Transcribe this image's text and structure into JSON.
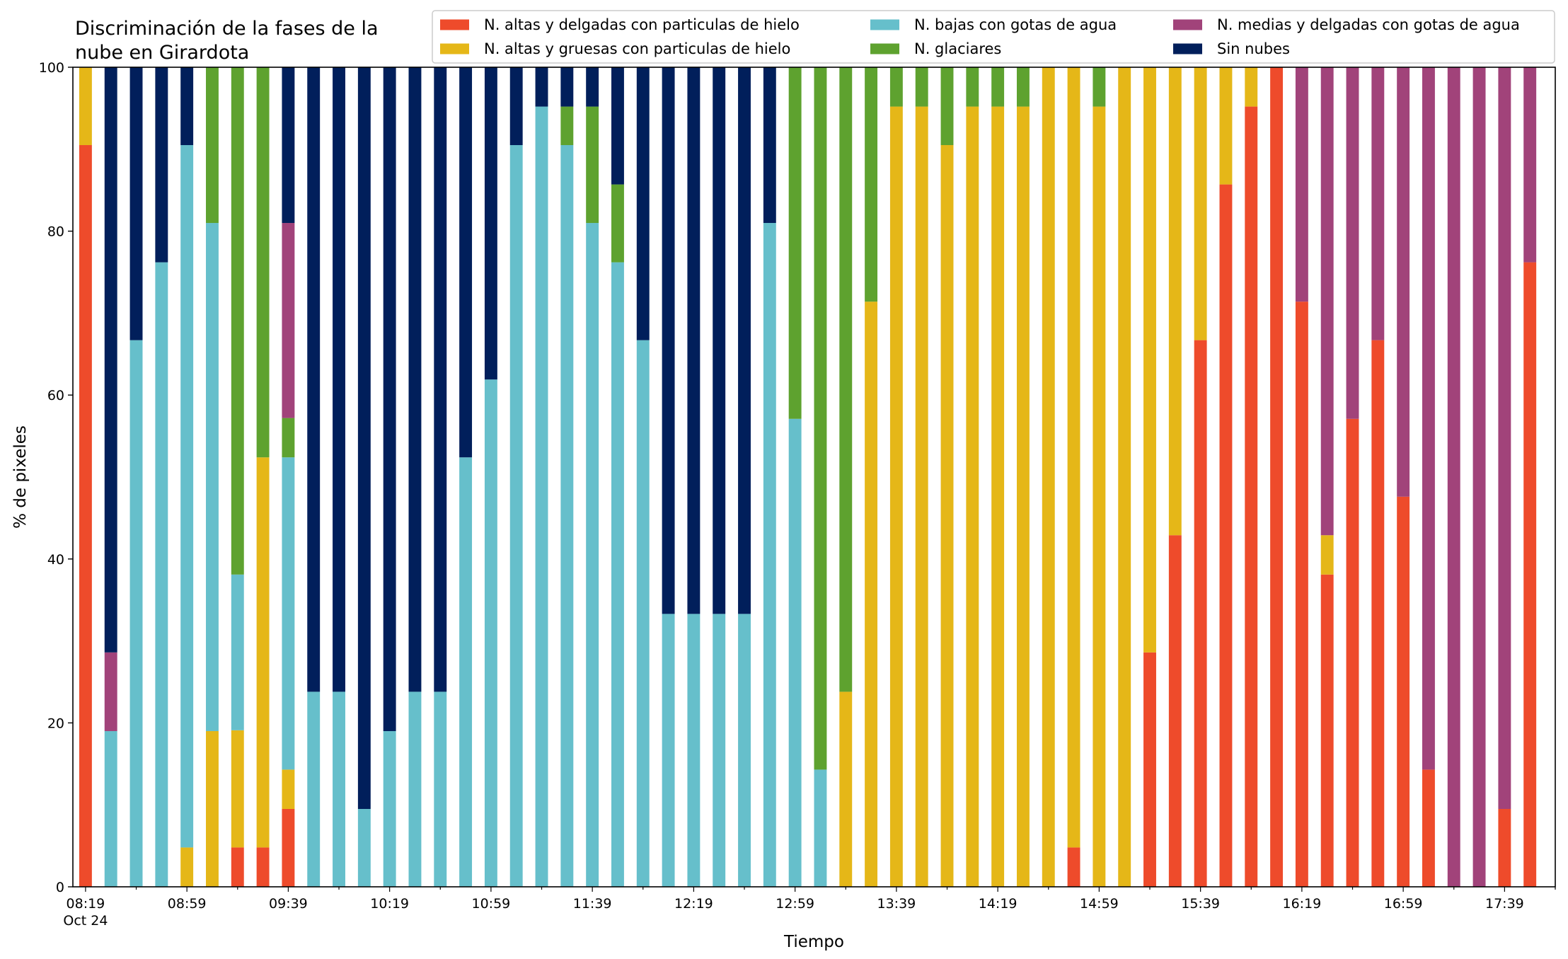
{
  "chart_data": {
    "type": "bar",
    "stacked": true,
    "title_lines": [
      "Discriminación de la fases de la",
      "nube en Girardota"
    ],
    "xlabel": "Tiempo",
    "ylabel": "% de pixeles",
    "ylim": [
      0,
      100
    ],
    "yticks": [
      0,
      20,
      40,
      60,
      80,
      100
    ],
    "xtick_labels": [
      "08:19",
      "08:59",
      "09:39",
      "10:19",
      "10:59",
      "11:39",
      "12:19",
      "12:59",
      "13:39",
      "14:19",
      "14:59",
      "15:39",
      "16:19",
      "16:59",
      "17:39"
    ],
    "xtick_sublabel": "Oct 24",
    "legend_position": "top-right",
    "colors": {
      "altas_delgadas": "#ee4b2b",
      "altas_gruesas": "#e5b718",
      "bajas": "#66bfcb",
      "glaciares": "#5ea22f",
      "medias_delgadas": "#a1437a",
      "sin_nubes": "#011f5b"
    },
    "legend": [
      {
        "key": "altas_delgadas",
        "label": "N. altas y delgadas con particulas de hielo"
      },
      {
        "key": "bajas",
        "label": "N. bajas con gotas de agua"
      },
      {
        "key": "medias_delgadas",
        "label": "N. medias y delgadas con gotas de agua"
      },
      {
        "key": "altas_gruesas",
        "label": "N. altas y gruesas con particulas de hielo"
      },
      {
        "key": "glaciares",
        "label": "N. glaciares"
      },
      {
        "key": "sin_nubes",
        "label": "Sin nubes"
      }
    ],
    "stack_order": [
      "altas_delgadas",
      "altas_gruesas",
      "bajas",
      "glaciares",
      "medias_delgadas",
      "sin_nubes"
    ],
    "bars": [
      {
        "time": "08:19",
        "altas_delgadas": 90.5,
        "altas_gruesas": 9.5,
        "bajas": 0,
        "glaciares": 0,
        "medias_delgadas": 0,
        "sin_nubes": 0
      },
      {
        "time": "08:29",
        "altas_delgadas": 0,
        "altas_gruesas": 0,
        "bajas": 19.0,
        "glaciares": 0,
        "medias_delgadas": 9.6,
        "sin_nubes": 71.4
      },
      {
        "time": "08:39",
        "altas_delgadas": 0,
        "altas_gruesas": 0,
        "bajas": 66.7,
        "glaciares": 0,
        "medias_delgadas": 0,
        "sin_nubes": 33.3
      },
      {
        "time": "08:49",
        "altas_delgadas": 0,
        "altas_gruesas": 0,
        "bajas": 76.2,
        "glaciares": 0,
        "medias_delgadas": 0,
        "sin_nubes": 23.8
      },
      {
        "time": "08:59",
        "altas_delgadas": 0,
        "altas_gruesas": 4.8,
        "bajas": 85.7,
        "glaciares": 0,
        "medias_delgadas": 0,
        "sin_nubes": 9.5
      },
      {
        "time": "09:09",
        "altas_delgadas": 0,
        "altas_gruesas": 19.0,
        "bajas": 62.0,
        "glaciares": 19.0,
        "medias_delgadas": 0,
        "sin_nubes": 0
      },
      {
        "time": "09:19",
        "altas_delgadas": 4.8,
        "altas_gruesas": 14.3,
        "bajas": 19.0,
        "glaciares": 61.9,
        "medias_delgadas": 0,
        "sin_nubes": 0
      },
      {
        "time": "09:29",
        "altas_delgadas": 4.8,
        "altas_gruesas": 47.6,
        "bajas": 0,
        "glaciares": 47.6,
        "medias_delgadas": 0,
        "sin_nubes": 0
      },
      {
        "time": "09:39",
        "altas_delgadas": 9.5,
        "altas_gruesas": 4.8,
        "bajas": 38.1,
        "glaciares": 4.8,
        "medias_delgadas": 23.8,
        "sin_nubes": 19.0
      },
      {
        "time": "09:49",
        "altas_delgadas": 0,
        "altas_gruesas": 0,
        "bajas": 23.8,
        "glaciares": 0,
        "medias_delgadas": 0,
        "sin_nubes": 76.2
      },
      {
        "time": "09:59",
        "altas_delgadas": 0,
        "altas_gruesas": 0,
        "bajas": 23.8,
        "glaciares": 0,
        "medias_delgadas": 0,
        "sin_nubes": 76.2
      },
      {
        "time": "10:09",
        "altas_delgadas": 0,
        "altas_gruesas": 0,
        "bajas": 9.5,
        "glaciares": 0,
        "medias_delgadas": 0,
        "sin_nubes": 90.5
      },
      {
        "time": "10:19",
        "altas_delgadas": 0,
        "altas_gruesas": 0,
        "bajas": 19.0,
        "glaciares": 0,
        "medias_delgadas": 0,
        "sin_nubes": 81.0
      },
      {
        "time": "10:29",
        "altas_delgadas": 0,
        "altas_gruesas": 0,
        "bajas": 23.8,
        "glaciares": 0,
        "medias_delgadas": 0,
        "sin_nubes": 76.2
      },
      {
        "time": "10:39",
        "altas_delgadas": 0,
        "altas_gruesas": 0,
        "bajas": 23.8,
        "glaciares": 0,
        "medias_delgadas": 0,
        "sin_nubes": 76.2
      },
      {
        "time": "10:49",
        "altas_delgadas": 0,
        "altas_gruesas": 0,
        "bajas": 52.4,
        "glaciares": 0,
        "medias_delgadas": 0,
        "sin_nubes": 47.6
      },
      {
        "time": "10:59",
        "altas_delgadas": 0,
        "altas_gruesas": 0,
        "bajas": 61.9,
        "glaciares": 0,
        "medias_delgadas": 0,
        "sin_nubes": 38.1
      },
      {
        "time": "11:09",
        "altas_delgadas": 0,
        "altas_gruesas": 0,
        "bajas": 90.5,
        "glaciares": 0,
        "medias_delgadas": 0,
        "sin_nubes": 9.5
      },
      {
        "time": "11:19",
        "altas_delgadas": 0,
        "altas_gruesas": 0,
        "bajas": 95.2,
        "glaciares": 0,
        "medias_delgadas": 0,
        "sin_nubes": 4.8
      },
      {
        "time": "11:29",
        "altas_delgadas": 0,
        "altas_gruesas": 0,
        "bajas": 90.5,
        "glaciares": 4.7,
        "medias_delgadas": 0,
        "sin_nubes": 4.8
      },
      {
        "time": "11:39",
        "altas_delgadas": 0,
        "altas_gruesas": 0,
        "bajas": 81.0,
        "glaciares": 14.2,
        "medias_delgadas": 0,
        "sin_nubes": 4.8
      },
      {
        "time": "11:49",
        "altas_delgadas": 0,
        "altas_gruesas": 0,
        "bajas": 76.2,
        "glaciares": 9.5,
        "medias_delgadas": 0,
        "sin_nubes": 14.3
      },
      {
        "time": "11:59",
        "altas_delgadas": 0,
        "altas_gruesas": 0,
        "bajas": 66.7,
        "glaciares": 0,
        "medias_delgadas": 0,
        "sin_nubes": 33.3
      },
      {
        "time": "12:09",
        "altas_delgadas": 0,
        "altas_gruesas": 0,
        "bajas": 33.3,
        "glaciares": 0,
        "medias_delgadas": 0,
        "sin_nubes": 66.7
      },
      {
        "time": "12:19",
        "altas_delgadas": 0,
        "altas_gruesas": 0,
        "bajas": 33.3,
        "glaciares": 0,
        "medias_delgadas": 0,
        "sin_nubes": 66.7
      },
      {
        "time": "12:29",
        "altas_delgadas": 0,
        "altas_gruesas": 0,
        "bajas": 33.3,
        "glaciares": 0,
        "medias_delgadas": 0,
        "sin_nubes": 66.7
      },
      {
        "time": "12:39",
        "altas_delgadas": 0,
        "altas_gruesas": 0,
        "bajas": 33.3,
        "glaciares": 0,
        "medias_delgadas": 0,
        "sin_nubes": 66.7
      },
      {
        "time": "12:49",
        "altas_delgadas": 0,
        "altas_gruesas": 0,
        "bajas": 81.0,
        "glaciares": 0,
        "medias_delgadas": 0,
        "sin_nubes": 19.0
      },
      {
        "time": "12:59",
        "altas_delgadas": 0,
        "altas_gruesas": 0,
        "bajas": 57.1,
        "glaciares": 42.9,
        "medias_delgadas": 0,
        "sin_nubes": 0
      },
      {
        "time": "13:09",
        "altas_delgadas": 0,
        "altas_gruesas": 0,
        "bajas": 14.3,
        "glaciares": 85.7,
        "medias_delgadas": 0,
        "sin_nubes": 0
      },
      {
        "time": "13:19",
        "altas_delgadas": 0,
        "altas_gruesas": 23.8,
        "bajas": 0,
        "glaciares": 76.2,
        "medias_delgadas": 0,
        "sin_nubes": 0
      },
      {
        "time": "13:29",
        "altas_delgadas": 0,
        "altas_gruesas": 71.4,
        "bajas": 0,
        "glaciares": 28.6,
        "medias_delgadas": 0,
        "sin_nubes": 0
      },
      {
        "time": "13:39",
        "altas_delgadas": 0,
        "altas_gruesas": 95.2,
        "bajas": 0,
        "glaciares": 4.8,
        "medias_delgadas": 0,
        "sin_nubes": 0
      },
      {
        "time": "13:49",
        "altas_delgadas": 0,
        "altas_gruesas": 95.2,
        "bajas": 0,
        "glaciares": 4.8,
        "medias_delgadas": 0,
        "sin_nubes": 0
      },
      {
        "time": "13:59",
        "altas_delgadas": 0,
        "altas_gruesas": 90.5,
        "bajas": 0,
        "glaciares": 9.5,
        "medias_delgadas": 0,
        "sin_nubes": 0
      },
      {
        "time": "14:09",
        "altas_delgadas": 0,
        "altas_gruesas": 95.2,
        "bajas": 0,
        "glaciares": 4.8,
        "medias_delgadas": 0,
        "sin_nubes": 0
      },
      {
        "time": "14:19",
        "altas_delgadas": 0,
        "altas_gruesas": 95.2,
        "bajas": 0,
        "glaciares": 4.8,
        "medias_delgadas": 0,
        "sin_nubes": 0
      },
      {
        "time": "14:29",
        "altas_delgadas": 0,
        "altas_gruesas": 95.2,
        "bajas": 0,
        "glaciares": 4.8,
        "medias_delgadas": 0,
        "sin_nubes": 0
      },
      {
        "time": "14:39",
        "altas_delgadas": 0,
        "altas_gruesas": 100,
        "bajas": 0,
        "glaciares": 0,
        "medias_delgadas": 0,
        "sin_nubes": 0
      },
      {
        "time": "14:49",
        "altas_delgadas": 4.8,
        "altas_gruesas": 95.2,
        "bajas": 0,
        "glaciares": 0,
        "medias_delgadas": 0,
        "sin_nubes": 0
      },
      {
        "time": "14:59",
        "altas_delgadas": 0,
        "altas_gruesas": 95.2,
        "bajas": 0,
        "glaciares": 4.8,
        "medias_delgadas": 0,
        "sin_nubes": 0
      },
      {
        "time": "15:09",
        "altas_delgadas": 0,
        "altas_gruesas": 100,
        "bajas": 0,
        "glaciares": 0,
        "medias_delgadas": 0,
        "sin_nubes": 0
      },
      {
        "time": "15:19",
        "altas_delgadas": 28.6,
        "altas_gruesas": 71.4,
        "bajas": 0,
        "glaciares": 0,
        "medias_delgadas": 0,
        "sin_nubes": 0
      },
      {
        "time": "15:29",
        "altas_delgadas": 42.9,
        "altas_gruesas": 57.1,
        "bajas": 0,
        "glaciares": 0,
        "medias_delgadas": 0,
        "sin_nubes": 0
      },
      {
        "time": "15:39",
        "altas_delgadas": 66.7,
        "altas_gruesas": 33.3,
        "bajas": 0,
        "glaciares": 0,
        "medias_delgadas": 0,
        "sin_nubes": 0
      },
      {
        "time": "15:49",
        "altas_delgadas": 85.7,
        "altas_gruesas": 14.3,
        "bajas": 0,
        "glaciares": 0,
        "medias_delgadas": 0,
        "sin_nubes": 0
      },
      {
        "time": "15:59",
        "altas_delgadas": 95.2,
        "altas_gruesas": 4.8,
        "bajas": 0,
        "glaciares": 0,
        "medias_delgadas": 0,
        "sin_nubes": 0
      },
      {
        "time": "16:09",
        "altas_delgadas": 100,
        "altas_gruesas": 0,
        "bajas": 0,
        "glaciares": 0,
        "medias_delgadas": 0,
        "sin_nubes": 0
      },
      {
        "time": "16:19",
        "altas_delgadas": 71.4,
        "altas_gruesas": 0,
        "bajas": 0,
        "glaciares": 0,
        "medias_delgadas": 28.6,
        "sin_nubes": 0
      },
      {
        "time": "16:29",
        "altas_delgadas": 38.1,
        "altas_gruesas": 4.8,
        "bajas": 0,
        "glaciares": 0,
        "medias_delgadas": 57.1,
        "sin_nubes": 0
      },
      {
        "time": "16:39",
        "altas_delgadas": 57.1,
        "altas_gruesas": 0,
        "bajas": 0,
        "glaciares": 0,
        "medias_delgadas": 42.9,
        "sin_nubes": 0
      },
      {
        "time": "16:49",
        "altas_delgadas": 66.7,
        "altas_gruesas": 0,
        "bajas": 0,
        "glaciares": 0,
        "medias_delgadas": 33.3,
        "sin_nubes": 0
      },
      {
        "time": "16:59",
        "altas_delgadas": 47.6,
        "altas_gruesas": 0,
        "bajas": 0,
        "glaciares": 0,
        "medias_delgadas": 52.4,
        "sin_nubes": 0
      },
      {
        "time": "17:09",
        "altas_delgadas": 14.3,
        "altas_gruesas": 0,
        "bajas": 0,
        "glaciares": 0,
        "medias_delgadas": 85.7,
        "sin_nubes": 0
      },
      {
        "time": "17:19",
        "altas_delgadas": 0,
        "altas_gruesas": 0,
        "bajas": 0,
        "glaciares": 0,
        "medias_delgadas": 100,
        "sin_nubes": 0
      },
      {
        "time": "17:29",
        "altas_delgadas": 0,
        "altas_gruesas": 0,
        "bajas": 0,
        "glaciares": 0,
        "medias_delgadas": 100,
        "sin_nubes": 0
      },
      {
        "time": "17:39",
        "altas_delgadas": 9.5,
        "altas_gruesas": 0,
        "bajas": 0,
        "glaciares": 0,
        "medias_delgadas": 90.5,
        "sin_nubes": 0
      },
      {
        "time": "17:49",
        "altas_delgadas": 76.2,
        "altas_gruesas": 0,
        "bajas": 0,
        "glaciares": 0,
        "medias_delgadas": 23.8,
        "sin_nubes": 0
      }
    ]
  }
}
